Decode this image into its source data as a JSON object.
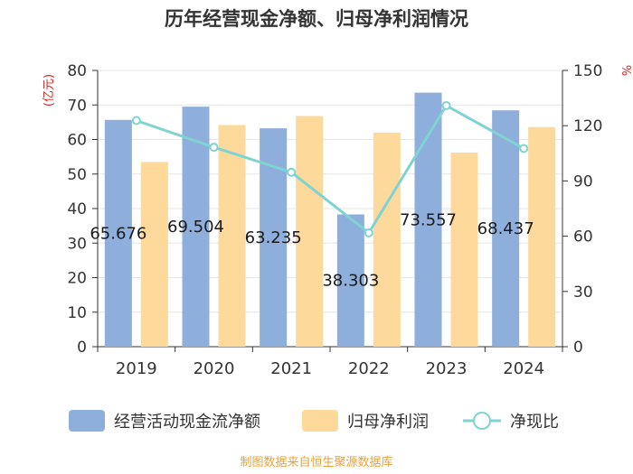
{
  "chart_data": {
    "type": "bar+line",
    "title": "历年经营现金净额、归母净利润情况",
    "categories": [
      "2019",
      "2020",
      "2021",
      "2022",
      "2023",
      "2024"
    ],
    "left_axis": {
      "unit": "(亿元)",
      "ylim": [
        0,
        80
      ],
      "ticks": [
        0,
        10,
        20,
        30,
        40,
        50,
        60,
        70,
        80
      ]
    },
    "right_axis": {
      "unit": "%",
      "ylim": [
        0,
        150
      ],
      "ticks": [
        0,
        30,
        60,
        90,
        120,
        150
      ]
    },
    "series": [
      {
        "name": "经营活动现金流净额",
        "type": "bar",
        "axis": "left",
        "color": "#8eaedc",
        "values": [
          65.676,
          69.504,
          63.235,
          38.303,
          73.557,
          68.437
        ],
        "data_labels": [
          "65.676",
          "69.504",
          "63.235",
          "38.303",
          "73.557",
          "68.437"
        ]
      },
      {
        "name": "归母净利润",
        "type": "bar",
        "axis": "left",
        "color": "#fdd99b",
        "values": [
          53.5,
          64.2,
          66.8,
          62.0,
          56.2,
          63.6
        ]
      },
      {
        "name": "净现比",
        "type": "line",
        "axis": "right",
        "color": "#7fd3d3",
        "values": [
          122.8,
          108.3,
          94.7,
          61.8,
          130.9,
          107.6
        ]
      }
    ],
    "legend_position": "bottom",
    "grid": true
  },
  "source_text": "制图数据来自恒生聚源数据库"
}
